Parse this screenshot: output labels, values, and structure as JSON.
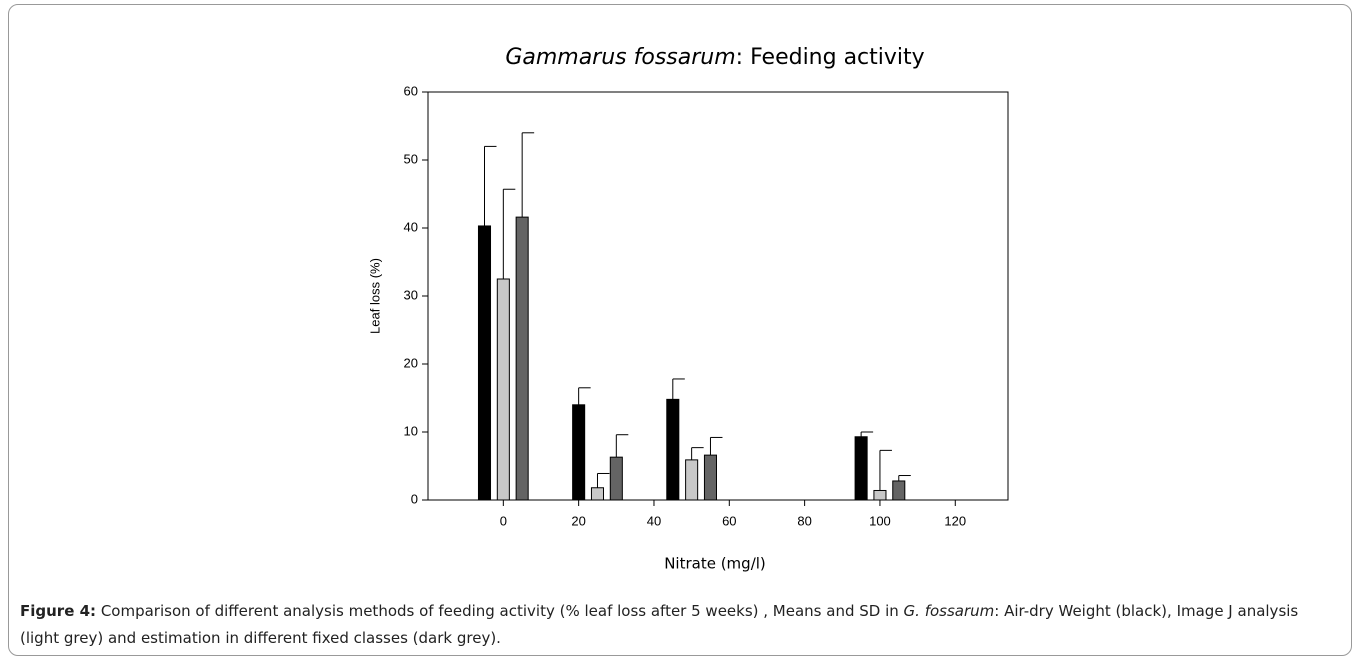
{
  "chart_data": {
    "type": "bar",
    "title": {
      "species": "Gammarus fossarum",
      "text": ": Feeding activity"
    },
    "xlabel": "Nitrate (mg/l)",
    "ylabel": "Leaf loss (%)",
    "xlim": [
      -20,
      134
    ],
    "xticks": [
      0,
      20,
      40,
      60,
      80,
      100,
      120
    ],
    "ylim": [
      0,
      60
    ],
    "yticks": [
      0,
      10,
      20,
      30,
      40,
      50,
      60
    ],
    "bar_width": 3.2,
    "series": [
      {
        "color": "#000000",
        "x": [
          -5,
          20,
          45,
          95
        ],
        "values": [
          40.3,
          14,
          14.8,
          9.3
        ],
        "errors": [
          11.7,
          2.5,
          3,
          0.7
        ]
      },
      {
        "color": "#c8c8c8",
        "x": [
          0,
          25,
          50,
          100
        ],
        "values": [
          32.5,
          1.8,
          5.9,
          1.4
        ],
        "errors": [
          13.2,
          2.1,
          1.8,
          5.9
        ]
      },
      {
        "color": "#646464",
        "x": [
          5,
          30,
          55,
          105
        ],
        "values": [
          41.6,
          6.3,
          6.6,
          2.8
        ],
        "errors": [
          12.4,
          3.3,
          2.6,
          0.8
        ]
      }
    ]
  },
  "caption": [
    {
      "text": "Figure 4:",
      "style": "bold"
    },
    {
      "text": " Comparison of different analysis methods of feeding activity (% leaf loss after 5 weeks) , Means and SD in ",
      "style": "normal"
    },
    {
      "text": "G. fossarum",
      "style": "italic"
    },
    {
      "text": ": Air-dry Weight (black), Image J analysis (light grey) and estimation in different fixed classes (dark grey).",
      "style": "normal"
    }
  ]
}
